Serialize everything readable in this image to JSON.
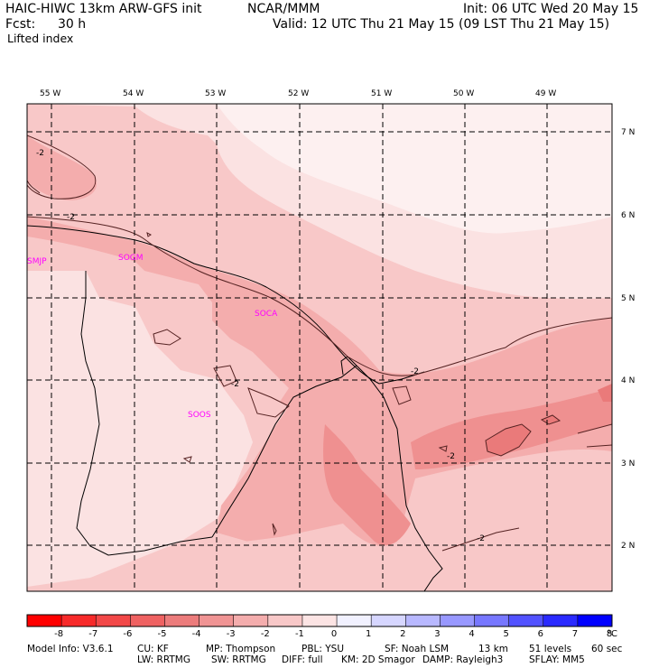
{
  "header": {
    "model_line": "HAIC-HIWC 13km ARW-GFS init",
    "org": "NCAR/MMM",
    "init": "Init: 06 UTC Wed 20 May 15",
    "fcst_label": "Fcst:",
    "fcst_value": "30 h",
    "valid": "Valid: 12 UTC Thu 21 May 15 (09 LST Thu 21 May 15)",
    "field": "Lifted index"
  },
  "map": {
    "lon_labels": [
      "55 W",
      "54 W",
      "53 W",
      "52 W",
      "51 W",
      "50 W",
      "49 W"
    ],
    "lat_labels": [
      "7 N",
      "6 N",
      "5 N",
      "4 N",
      "3 N",
      "2 N"
    ],
    "stations": [
      "SMJP",
      "SOGM",
      "SOCA",
      "SOOS"
    ],
    "contour_labels": [
      "-2",
      "-2",
      "-2",
      "-2",
      "-2",
      "-2"
    ],
    "colors": {
      "fill_1": "#fbe2e2",
      "fill_2": "#f8c8c8",
      "fill_3": "#f4adad",
      "fill_4": "#ef9090",
      "fill_5": "#ea7a7a",
      "station": "#ff00ff"
    }
  },
  "colorbar": {
    "ticks": [
      "-8",
      "-7",
      "-6",
      "-5",
      "-4",
      "-3",
      "-2",
      "-1",
      "0",
      "1",
      "2",
      "3",
      "4",
      "5",
      "6",
      "7",
      "8"
    ],
    "unit": "°C",
    "colors": [
      "#ff0000",
      "#f72a2a",
      "#f24848",
      "#ef6262",
      "#ec7c7c",
      "#f09494",
      "#f4adad",
      "#f8c8c8",
      "#fce4e4",
      "#f1f1ff",
      "#d6d6ff",
      "#b8b8ff",
      "#9898ff",
      "#7777ff",
      "#5252ff",
      "#2a2aff",
      "#0000ff"
    ]
  },
  "footer": {
    "line1": [
      "Model Info: V3.6.1",
      "CU: KF",
      "MP: Thompson",
      "PBL: YSU",
      "SF: Noah LSM",
      "13 km",
      "51 levels",
      "60 sec"
    ],
    "line2": [
      "LW: RRTMG",
      "SW: RRTMG",
      "DIFF: full",
      "KM: 2D Smagor",
      "DAMP: Rayleigh3",
      "SFLAY: MM5"
    ]
  }
}
